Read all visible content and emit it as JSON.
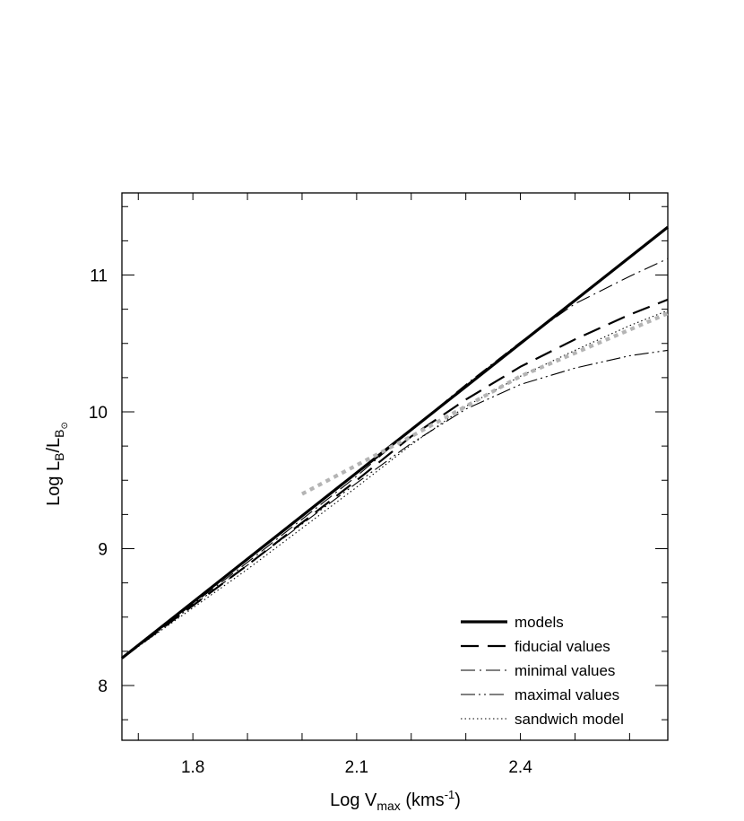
{
  "chart_data": {
    "type": "line",
    "xlabel": {
      "main": "Log V",
      "sub": "max",
      "unit": " (kms",
      "sup": "-1",
      "close": ")"
    },
    "ylabel": {
      "main": "Log L",
      "sub1": "B",
      "slash": "/L",
      "sub2": "B",
      "sub3": "⊙"
    },
    "xlim": [
      1.67,
      2.67
    ],
    "ylim": [
      7.6,
      11.6
    ],
    "x_ticks": [
      "1.8",
      "2.1",
      "2.4"
    ],
    "x_tick_values": [
      1.8,
      2.1,
      2.4
    ],
    "y_ticks": [
      "8",
      "9",
      "10",
      "11"
    ],
    "y_tick_values": [
      8,
      9,
      10,
      11
    ],
    "grid": false,
    "legend_position": "bottom-right",
    "series": [
      {
        "name": "models",
        "style": "thick-solid",
        "color": "#000000",
        "x": [
          1.67,
          2.67
        ],
        "y": [
          8.2,
          11.35
        ]
      },
      {
        "name": "fiducial values",
        "style": "long-dash",
        "color": "#000000",
        "x": [
          1.67,
          1.9,
          2.1,
          2.2,
          2.3,
          2.4,
          2.5,
          2.6,
          2.67
        ],
        "y": [
          8.2,
          8.88,
          9.5,
          9.82,
          10.09,
          10.33,
          10.53,
          10.71,
          10.82
        ]
      },
      {
        "name": "minimal values",
        "style": "dash-dot",
        "color": "#000000",
        "x": [
          1.67,
          1.9,
          2.1,
          2.2,
          2.3,
          2.4,
          2.5,
          2.6,
          2.67
        ],
        "y": [
          8.2,
          8.9,
          9.53,
          9.87,
          10.2,
          10.51,
          10.79,
          10.99,
          11.12
        ]
      },
      {
        "name": "maximal values",
        "style": "dash-dot-dot",
        "color": "#000000",
        "x": [
          1.67,
          1.9,
          2.1,
          2.2,
          2.3,
          2.4,
          2.5,
          2.6,
          2.67
        ],
        "y": [
          8.2,
          8.88,
          9.48,
          9.77,
          10.02,
          10.2,
          10.32,
          10.41,
          10.45
        ]
      },
      {
        "name": "sandwich model",
        "style": "dotted",
        "color": "#000000",
        "x": [
          1.67,
          1.9,
          2.1,
          2.2,
          2.3,
          2.4,
          2.5,
          2.6,
          2.67
        ],
        "y": [
          8.2,
          8.85,
          9.45,
          9.76,
          10.04,
          10.26,
          10.45,
          10.63,
          10.74
        ]
      },
      {
        "name": "",
        "style": "gray-thick-dashed",
        "color": "#b4b4b4",
        "x": [
          2.0,
          2.2,
          2.4,
          2.6,
          2.67
        ],
        "y": [
          9.4,
          9.82,
          10.26,
          10.6,
          10.72
        ]
      }
    ]
  }
}
